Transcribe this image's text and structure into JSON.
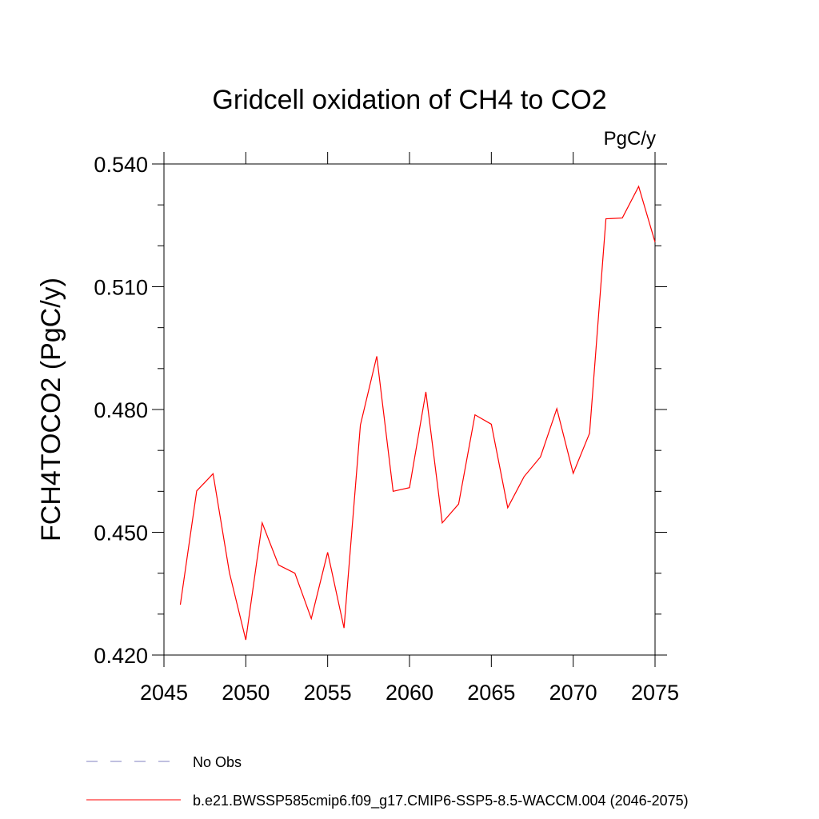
{
  "chart_data": {
    "type": "line",
    "title": "Gridcell oxidation of CH4 to CO2",
    "units": "PgC/y",
    "xlabel": "",
    "ylabel": "FCH4TOCO2  (PgC/y)",
    "xlim": [
      2045,
      2075
    ],
    "ylim": [
      0.42,
      0.54
    ],
    "x_ticks": [
      2045,
      2050,
      2055,
      2060,
      2065,
      2070,
      2075
    ],
    "x_tick_labels": [
      "2045",
      "2050",
      "2055",
      "2060",
      "2065",
      "2070",
      "2075"
    ],
    "y_ticks": [
      0.42,
      0.45,
      0.48,
      0.51,
      0.54
    ],
    "y_tick_labels": [
      "0.420",
      "0.450",
      "0.480",
      "0.510",
      "0.540"
    ],
    "y_minor_step": 0.01,
    "x_minor_step": 1,
    "grid": false,
    "legend_position": "bottom",
    "series": [
      {
        "name": "b.e21.BWSSP585cmip6.f09_g17.CMIP6-SSP5-8.5-WACCM.004 (2046-2075)",
        "color": "#ff0000",
        "style": "solid",
        "x": [
          2046,
          2047,
          2048,
          2049,
          2050,
          2051,
          2052,
          2053,
          2054,
          2055,
          2056,
          2057,
          2058,
          2059,
          2060,
          2061,
          2062,
          2063,
          2064,
          2065,
          2066,
          2067,
          2068,
          2069,
          2070,
          2071,
          2072,
          2073,
          2074,
          2075
        ],
        "values": [
          0.4323,
          0.4601,
          0.4643,
          0.4401,
          0.4237,
          0.4523,
          0.442,
          0.44,
          0.4289,
          0.4451,
          0.4266,
          0.4762,
          0.493,
          0.46,
          0.4609,
          0.4843,
          0.4523,
          0.4569,
          0.4787,
          0.4764,
          0.456,
          0.4636,
          0.4684,
          0.4802,
          0.4644,
          0.4742,
          0.5266,
          0.5268,
          0.5345,
          0.5209
        ]
      }
    ],
    "legend": [
      {
        "label": "No Obs",
        "color": "#8080c0",
        "style": "dashed"
      },
      {
        "label": "b.e21.BWSSP585cmip6.f09_g17.CMIP6-SSP5-8.5-WACCM.004 (2046-2075)",
        "color": "#ff0000",
        "style": "solid"
      }
    ]
  }
}
